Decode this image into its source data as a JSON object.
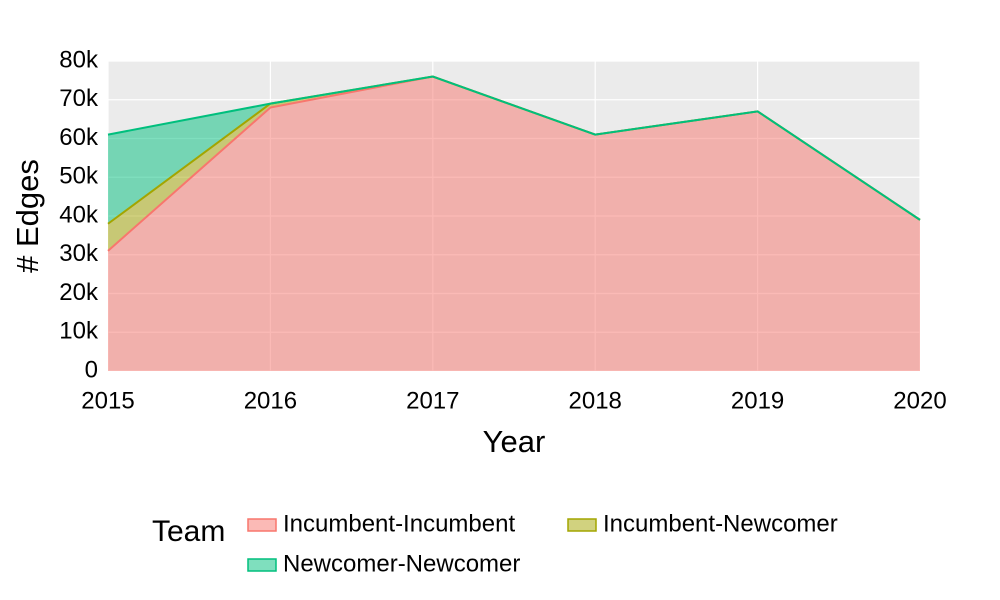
{
  "chart_data": {
    "type": "area",
    "stacked": true,
    "x_label": "Year",
    "y_label": "# Edges",
    "legend_title": "Team",
    "x": [
      2015,
      2016,
      2017,
      2018,
      2019,
      2020
    ],
    "xlim": [
      2015,
      2020
    ],
    "xticks": [
      2015,
      2016,
      2017,
      2018,
      2019,
      2020
    ],
    "ylim": [
      0,
      80000
    ],
    "yticks": [
      0,
      {
        "value": 10000,
        "label": "10k"
      },
      {
        "value": 20000,
        "label": "20k"
      },
      {
        "value": 30000,
        "label": "30k"
      },
      {
        "value": 40000,
        "label": "40k"
      },
      {
        "value": 50000,
        "label": "50k"
      },
      {
        "value": 60000,
        "label": "60k"
      },
      {
        "value": 70000,
        "label": "70k"
      },
      {
        "value": 80000,
        "label": "80k"
      }
    ],
    "grid": true,
    "legend_position": "bottom",
    "series": [
      {
        "name": "Incumbent-Incumbent",
        "color": "#f8766d",
        "values": [
          31000,
          68000,
          76000,
          61000,
          67000,
          39000
        ]
      },
      {
        "name": "Incumbent-Newcomer",
        "color": "#a3a500",
        "values": [
          7000,
          1000,
          0,
          0,
          0,
          0
        ]
      },
      {
        "name": "Newcomer-Newcomer",
        "color": "#00bf7d",
        "values": [
          23000,
          0,
          0,
          0,
          0,
          0
        ]
      }
    ]
  }
}
